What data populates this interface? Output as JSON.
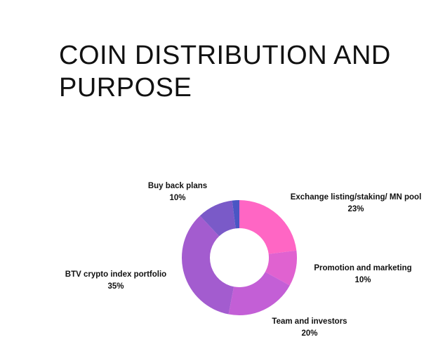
{
  "title": "COIN DISTRIBUTION AND PURPOSE",
  "chart_data": {
    "type": "pie",
    "donut": true,
    "slices": [
      {
        "label": "Exchange listing/staking/ MN pool",
        "value": 23,
        "value_label": "23%",
        "color": "#ff66c4"
      },
      {
        "label": "Promotion and marketing",
        "value": 10,
        "value_label": "10%",
        "color": "#e062d0"
      },
      {
        "label": "Team and investors",
        "value": 20,
        "value_label": "20%",
        "color": "#c35fd6"
      },
      {
        "label": "BTV crypto index portfolio",
        "value": 35,
        "value_label": "35%",
        "color": "#a35ccf"
      },
      {
        "label": "Buy back plans",
        "value": 10,
        "value_label": "10%",
        "color": "#7a5ac8"
      },
      {
        "label": "",
        "value": 2,
        "value_label": "",
        "color": "#4a56c4"
      }
    ]
  }
}
